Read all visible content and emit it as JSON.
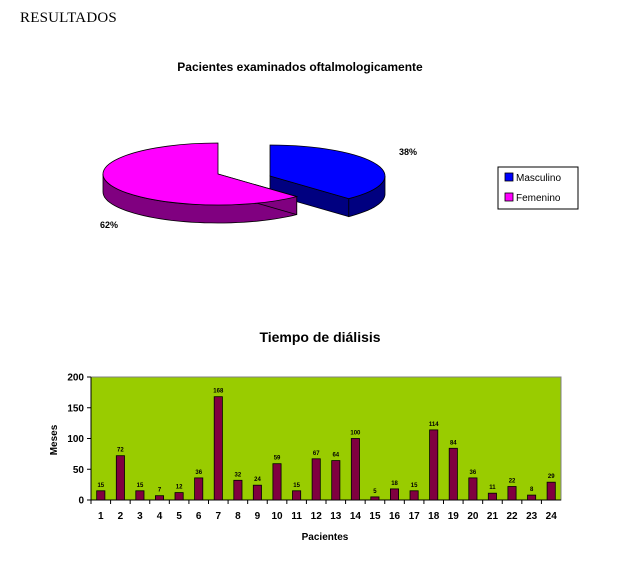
{
  "page": {
    "heading": "RESULTADOS"
  },
  "colors": {
    "masculino_top": "#0000ff",
    "masculino_side": "#000080",
    "femenino_top": "#ff00ff",
    "femenino_side": "#800080",
    "plot_bg": "#99cc00",
    "bar_fill": "#800040"
  },
  "chart_data": [
    {
      "type": "pie",
      "title": "Pacientes examinados oftalmologicamente",
      "labels": [
        "Masculino",
        "Femenino"
      ],
      "values": [
        38,
        62
      ],
      "value_labels": [
        "38%",
        "62%"
      ],
      "style": "3d-exploded",
      "legend": "right"
    },
    {
      "type": "bar",
      "title": "Tiempo de diálisis",
      "xlabel": "Pacientes",
      "ylabel": "Meses",
      "ylim": [
        0,
        200
      ],
      "yticks": [
        "0",
        "50",
        "100",
        "150",
        "200"
      ],
      "grid": false,
      "categories": [
        "1",
        "2",
        "3",
        "4",
        "5",
        "6",
        "7",
        "8",
        "9",
        "10",
        "11",
        "12",
        "13",
        "14",
        "15",
        "16",
        "17",
        "18",
        "19",
        "20",
        "21",
        "22",
        "23",
        "24"
      ],
      "values": [
        15,
        72,
        15,
        7,
        12,
        36,
        168,
        32,
        24,
        59,
        15,
        67,
        64,
        100,
        5,
        18,
        15,
        114,
        84,
        36,
        11,
        22,
        8,
        29
      ],
      "data_labels": [
        "15",
        "72",
        "15",
        "7",
        "12",
        "36",
        "168",
        "32",
        "24",
        "59",
        "15",
        "67",
        "64",
        "100",
        "5",
        "18",
        "15",
        "114",
        "84",
        "36",
        "11",
        "22",
        "8",
        "29"
      ]
    }
  ]
}
